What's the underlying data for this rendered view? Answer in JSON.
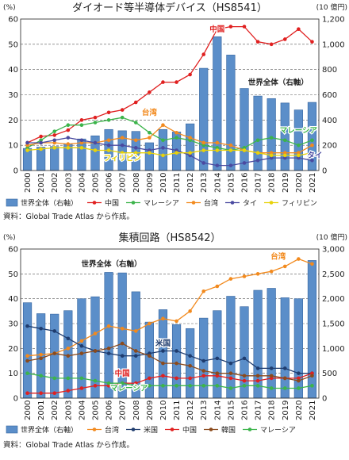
{
  "chart_data": [
    {
      "type": "bar",
      "title": "ダイオード等半導体デバイス（HS8541）",
      "left_unit": "(%)",
      "right_unit": "(10 億円)",
      "ylim": [
        0,
        60
      ],
      "y2lim": [
        0,
        1200
      ],
      "left_ticks": [
        "0",
        "10",
        "20",
        "30",
        "40",
        "50",
        "60"
      ],
      "right_ticks": [
        "0",
        "200",
        "400",
        "600",
        "800",
        "1,000",
        "1,200"
      ],
      "categories": [
        "2000",
        "2001",
        "2002",
        "2003",
        "2004",
        "2005",
        "2006",
        "2007",
        "2008",
        "2009",
        "2010",
        "2011",
        "2012",
        "2013",
        "2014",
        "2015",
        "2016",
        "2017",
        "2018",
        "2019",
        "2020",
        "2021"
      ],
      "bar_series": {
        "name": "世界全体（右軸）",
        "values": [
          175,
          185,
          190,
          210,
          250,
          275,
          325,
          315,
          310,
          220,
          325,
          305,
          370,
          810,
          1060,
          915,
          650,
          590,
          570,
          535,
          480,
          540
        ]
      },
      "line_series": [
        {
          "name": "中国",
          "color": "#e02020",
          "values": [
            11,
            13.5,
            14,
            16,
            20,
            21,
            23,
            24,
            27,
            31,
            35,
            35,
            38,
            46,
            56,
            57,
            57,
            51,
            50,
            52,
            56,
            51
          ]
        },
        {
          "name": "マレーシア",
          "color": "#3cb44b",
          "values": [
            9,
            12,
            15.5,
            18,
            18,
            19,
            20,
            21,
            19,
            15,
            12,
            13,
            12,
            10,
            9,
            8,
            9,
            12,
            13,
            12,
            10,
            12
          ]
        },
        {
          "name": "台湾",
          "color": "#f28a1e",
          "values": [
            10,
            11,
            11,
            10.5,
            11,
            11,
            12,
            13,
            12,
            13,
            18,
            15,
            13,
            11,
            11,
            10,
            8,
            7,
            7,
            7,
            7,
            10
          ]
        },
        {
          "name": "タイ",
          "color": "#4a4aa0",
          "values": [
            11,
            11,
            12,
            13,
            12,
            11,
            10,
            10,
            9,
            8,
            9,
            8,
            6,
            3,
            2,
            2,
            3,
            4,
            5,
            5,
            5,
            4
          ]
        },
        {
          "name": "フィリピン",
          "color": "#e8d20a",
          "values": [
            8,
            8.5,
            9,
            9,
            9,
            8,
            8,
            7,
            7,
            7,
            6,
            7,
            7,
            8,
            8,
            8,
            8,
            7,
            6,
            6,
            6,
            7
          ]
        }
      ],
      "annotations": [
        {
          "text": "中国",
          "color": "#e02020",
          "at": {
            "x": "2014",
            "y": 55
          }
        },
        {
          "text": "世界全体（右軸）",
          "color": "#222222",
          "at": {
            "x": "2018.5",
            "y": 34
          }
        },
        {
          "text": "台湾",
          "color": "#f28a1e",
          "at": {
            "x": "2009",
            "y": 22
          }
        },
        {
          "text": "マレーシア",
          "color": "#3cb44b",
          "at": {
            "x": "2020",
            "y": 15
          }
        },
        {
          "text": "フィリピン",
          "color": "#e8d20a",
          "at": {
            "x": "2007",
            "y": 4
          }
        },
        {
          "text": "タイ",
          "color": "#4a4aa0",
          "at": {
            "x": "2021.2",
            "y": 5
          }
        }
      ],
      "legend": {
        "placement": "bottom",
        "bar_label": "世界全体（右軸）",
        "items": [
          "中国",
          "マレーシア",
          "台湾",
          "タイ",
          "フィリピン"
        ]
      },
      "source": "資料：Global Trade Atlas から作成。"
    },
    {
      "type": "bar",
      "title": "集積回路（HS8542）",
      "left_unit": "(%)",
      "right_unit": "(10 億円)",
      "ylim": [
        0,
        60
      ],
      "y2lim": [
        0,
        3000
      ],
      "left_ticks": [
        "0",
        "10",
        "20",
        "30",
        "40",
        "50",
        "60"
      ],
      "right_ticks": [
        "0",
        "500",
        "1,000",
        "1,500",
        "2,000",
        "2,500",
        "3,000"
      ],
      "categories": [
        "2000",
        "2001",
        "2002",
        "2003",
        "2004",
        "2005",
        "2006",
        "2007",
        "2008",
        "2009",
        "2010",
        "2011",
        "2012",
        "2013",
        "2014",
        "2015",
        "2016",
        "2017",
        "2018",
        "2019",
        "2020",
        "2021"
      ],
      "bar_series": {
        "name": "世界全体（右軸）",
        "values": [
          1920,
          1700,
          1690,
          1760,
          2000,
          2040,
          2530,
          2520,
          2140,
          1530,
          1780,
          1480,
          1400,
          1610,
          1760,
          2050,
          1840,
          2170,
          2210,
          2020,
          2000,
          2770
        ]
      },
      "line_series": [
        {
          "name": "台湾",
          "color": "#f28a1e",
          "values": [
            17,
            17.5,
            18,
            20,
            23,
            26,
            29,
            28,
            27,
            30,
            32,
            31,
            35,
            43,
            45,
            48,
            49,
            50,
            51,
            53,
            56,
            54
          ]
        },
        {
          "name": "米国",
          "color": "#1f3c6e",
          "values": [
            29,
            28,
            27,
            24,
            21,
            19,
            18,
            17,
            17,
            18,
            19,
            19,
            17,
            15,
            16,
            14,
            16,
            12,
            12,
            12,
            10,
            10
          ]
        },
        {
          "name": "中国",
          "color": "#e02020",
          "values": [
            2,
            2,
            2,
            3,
            4,
            5,
            5,
            6,
            6,
            8,
            9,
            8,
            8,
            9,
            9,
            8,
            7,
            7,
            8,
            8,
            8,
            10
          ]
        },
        {
          "name": "韓国",
          "color": "#8b4a1c",
          "values": [
            15,
            16,
            18,
            17,
            18,
            19,
            20,
            22,
            19,
            17,
            14,
            14,
            13,
            11,
            10,
            10,
            9,
            9,
            9,
            8,
            7,
            9
          ]
        },
        {
          "name": "マレーシア",
          "color": "#3cb44b",
          "values": [
            10,
            9,
            8,
            8,
            8,
            7,
            6,
            6,
            5,
            5,
            5,
            5,
            5,
            5,
            5,
            4,
            5,
            5,
            4,
            4,
            4,
            5
          ]
        }
      ],
      "annotations": [
        {
          "text": "世界全体（右軸）",
          "color": "#222222",
          "at": {
            "x": "2006.2",
            "y": 53
          }
        },
        {
          "text": "台湾",
          "color": "#f28a1e",
          "at": {
            "x": "2018.5",
            "y": 56
          }
        },
        {
          "text": "米国",
          "color": "#1f3c6e",
          "at": {
            "x": "2010",
            "y": 21
          }
        },
        {
          "text": "中国",
          "color": "#e02020",
          "at": {
            "x": "2007",
            "y": 9
          }
        },
        {
          "text": "マレーシア",
          "color": "#3cb44b",
          "at": {
            "x": "2007.5",
            "y": 3
          }
        }
      ],
      "legend": {
        "placement": "bottom",
        "bar_label": "世界全体（右軸）",
        "items": [
          "台湾",
          "米国",
          "中国",
          "韓国",
          "マレーシア"
        ]
      },
      "source": "資料：Global Trade Atlas から作成。"
    }
  ]
}
